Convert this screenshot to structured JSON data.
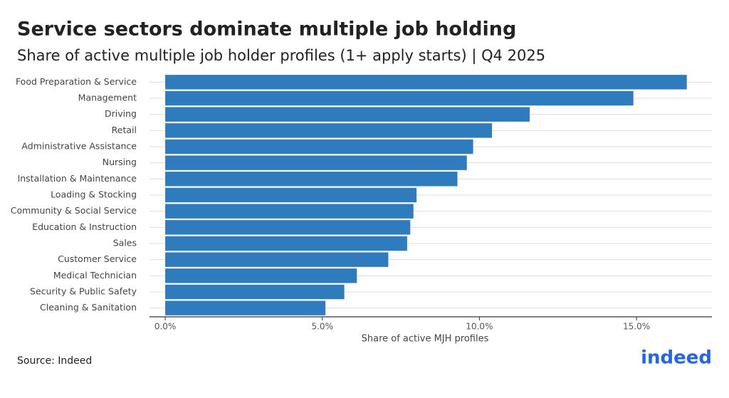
{
  "chart_data": {
    "type": "barh",
    "title": "Service sectors dominate multiple job holding",
    "subtitle": "Share of active multiple job holder profiles (1+ apply starts) | Q4 2025",
    "x_label": "Share of active MJH profiles",
    "source": "Source: Indeed",
    "logo": "indeed",
    "categories": [
      "Food Preparation & Service",
      "Management",
      "Driving",
      "Retail",
      "Administrative Assistance",
      "Nursing",
      "Installation & Maintenance",
      "Loading & Stocking",
      "Community & Social Service",
      "Education & Instruction",
      "Sales",
      "Customer Service",
      "Medical Technician",
      "Security & Public Safety",
      "Cleaning & Sanitation"
    ],
    "values": [
      16.6,
      14.9,
      11.6,
      10.4,
      9.8,
      9.6,
      9.3,
      8.0,
      7.9,
      7.8,
      7.7,
      7.1,
      6.1,
      5.7,
      5.1
    ],
    "color": "#2e7bbd",
    "xlim": [
      -0.5,
      17.4
    ],
    "xticks": [
      {
        "value": 0,
        "label": "0.0%"
      },
      {
        "value": 5,
        "label": "5.0%"
      },
      {
        "value": 10,
        "label": "10.0%"
      },
      {
        "value": 15,
        "label": "15.0%"
      }
    ],
    "grid": true
  }
}
